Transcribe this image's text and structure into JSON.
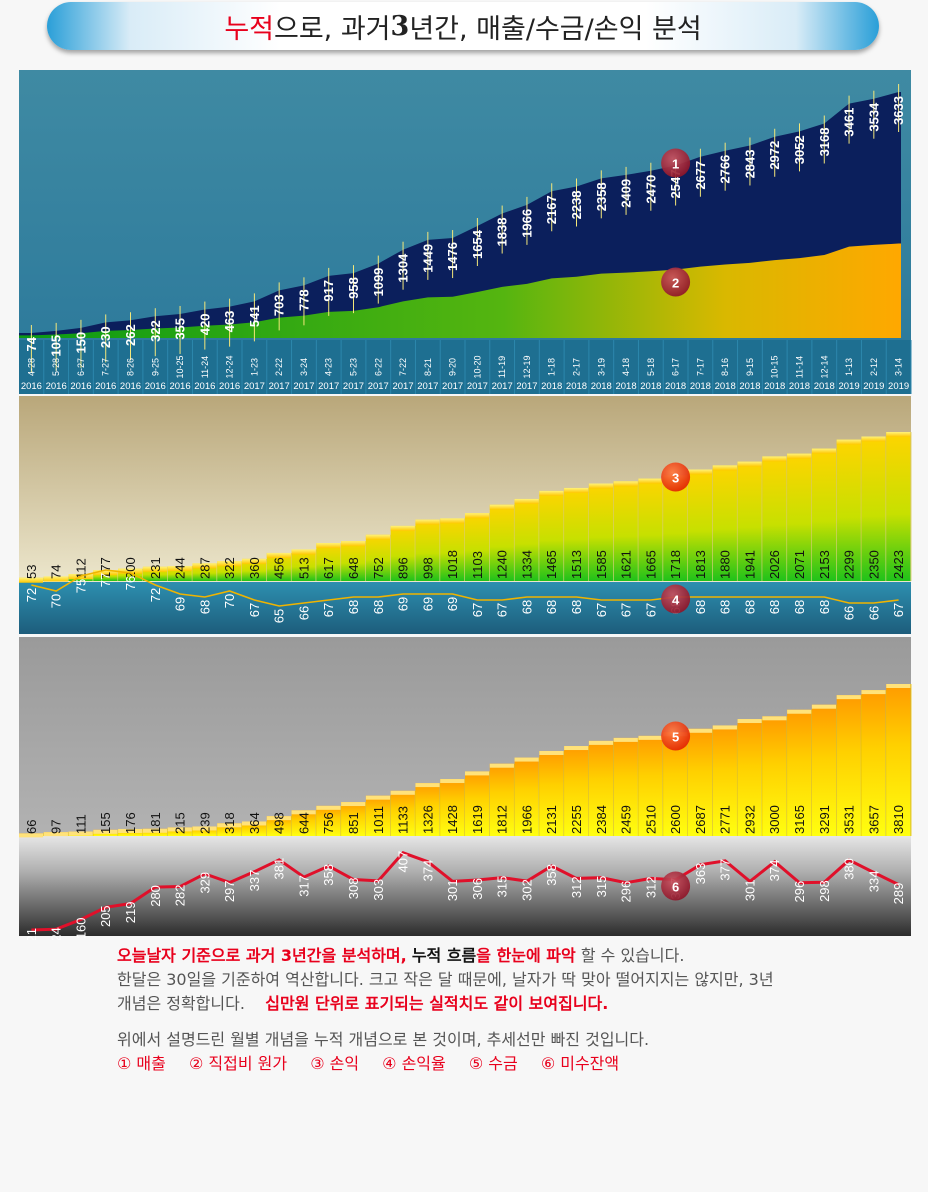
{
  "banner": {
    "part1": "누적",
    "part2": "으로,  과거 ",
    "part3": "3",
    "part4": "년간,    매출/수금/손익 분석"
  },
  "colors": {
    "sales_area": "#0b1f5c",
    "cost_area_top": "#ffb000",
    "cost_area_bottom": "#0a9a14",
    "panel1_bg": "#2e7fa0",
    "marker": "#a82033",
    "marker_light": "#ff3a00"
  },
  "chart_data": [
    {
      "type": "area",
      "categories": [
        "4-28",
        "5-28",
        "6-27",
        "7-27",
        "8-26",
        "9-25",
        "10-25",
        "11-24",
        "12-24",
        "1-23",
        "2-22",
        "3-24",
        "4-23",
        "5-23",
        "6-22",
        "7-22",
        "8-21",
        "9-20",
        "10-20",
        "11-19",
        "12-19",
        "1-18",
        "2-17",
        "3-19",
        "4-18",
        "5-18",
        "6-17",
        "7-17",
        "8-16",
        "9-15",
        "10-15",
        "11-14",
        "12-14",
        "1-13",
        "2-12",
        "3-14"
      ],
      "years": [
        "2016",
        "2016",
        "2016",
        "2016",
        "2016",
        "2016",
        "2016",
        "2016",
        "2016",
        "2017",
        "2017",
        "2017",
        "2017",
        "2017",
        "2017",
        "2017",
        "2017",
        "2017",
        "2017",
        "2017",
        "2017",
        "2018",
        "2018",
        "2018",
        "2018",
        "2018",
        "2018",
        "2018",
        "2018",
        "2018",
        "2018",
        "2018",
        "2018",
        "2019",
        "2019",
        "2019"
      ],
      "series": [
        {
          "values": [
            74,
            105,
            150,
            230,
            262,
            322,
            355,
            420,
            463,
            541,
            703,
            778,
            917,
            958,
            1099,
            1304,
            1449,
            1476,
            1654,
            1838,
            1966,
            2167,
            2238,
            2358,
            2409,
            2470,
            2547,
            2677,
            2766,
            2843,
            2972,
            3052,
            3168,
            3461,
            3534,
            3633
          ]
        },
        {
          "values": [
            38,
            52,
            70,
            105,
            118,
            140,
            155,
            180,
            200,
            232,
            300,
            330,
            385,
            400,
            455,
            540,
            600,
            610,
            680,
            755,
            800,
            880,
            905,
            950,
            965,
            985,
            1010,
            1055,
            1085,
            1110,
            1150,
            1180,
            1225,
            1350,
            1375,
            1395
          ]
        }
      ],
      "markers": [
        "1",
        "2"
      ]
    },
    {
      "type": "bar",
      "categories": [
        "4-28",
        "5-28",
        "6-27",
        "7-27",
        "8-26",
        "9-25",
        "10-25",
        "11-24",
        "12-24",
        "1-23",
        "2-22",
        "3-24",
        "4-23",
        "5-23",
        "6-22",
        "7-22",
        "8-21",
        "9-20",
        "10-20",
        "11-19",
        "12-19",
        "1-18",
        "2-17",
        "3-19",
        "4-18",
        "5-18",
        "6-17",
        "7-17",
        "8-16",
        "9-15",
        "10-15",
        "11-14",
        "12-14",
        "1-13",
        "2-12",
        "3-14"
      ],
      "series": [
        {
          "values": [
            53,
            74,
            112,
            177,
            200,
            231,
            244,
            287,
            322,
            360,
            456,
            513,
            617,
            648,
            752,
            896,
            998,
            1018,
            1103,
            1240,
            1334,
            1465,
            1513,
            1585,
            1621,
            1665,
            1718,
            1813,
            1880,
            1941,
            2026,
            2071,
            2153,
            2299,
            2350,
            2423
          ]
        },
        {
          "type": "line",
          "values": [
            72,
            70,
            75,
            77,
            76,
            72,
            69,
            68,
            70,
            67,
            65,
            66,
            67,
            68,
            68,
            69,
            69,
            69,
            67,
            67,
            68,
            68,
            68,
            67,
            67,
            67,
            68,
            68,
            68,
            68,
            68,
            68,
            68,
            66,
            66,
            67
          ]
        }
      ],
      "markers": [
        "3",
        "4"
      ]
    },
    {
      "type": "bar",
      "categories": [
        "4-28",
        "5-28",
        "6-27",
        "7-27",
        "8-26",
        "9-25",
        "10-25",
        "11-24",
        "12-24",
        "1-23",
        "2-22",
        "3-24",
        "4-23",
        "5-23",
        "6-22",
        "7-22",
        "8-21",
        "9-20",
        "10-20",
        "11-19",
        "12-19",
        "1-18",
        "2-17",
        "3-19",
        "4-18",
        "5-18",
        "6-17",
        "7-17",
        "8-16",
        "9-15",
        "10-15",
        "11-14",
        "12-14",
        "1-13",
        "2-12",
        "3-14"
      ],
      "series": [
        {
          "values": [
            66,
            97,
            111,
            155,
            176,
            181,
            215,
            239,
            318,
            364,
            498,
            644,
            756,
            851,
            1011,
            1133,
            1326,
            1428,
            1619,
            1812,
            1966,
            2131,
            2255,
            2384,
            2459,
            2510,
            2600,
            2687,
            2771,
            2932,
            3000,
            3165,
            3291,
            3531,
            3657,
            3810
          ]
        },
        {
          "type": "line",
          "values": [
            121,
            124,
            160,
            205,
            219,
            280,
            282,
            329,
            297,
            337,
            381,
            317,
            358,
            308,
            303,
            407,
            374,
            301,
            306,
            315,
            302,
            358,
            312,
            315,
            296,
            312,
            307,
            363,
            377,
            301,
            374,
            296,
            298,
            380,
            334,
            289
          ]
        }
      ],
      "markers": [
        "5",
        "6"
      ]
    }
  ],
  "notes": {
    "line1_red": "오늘날자 기준으로 과거 3년간을 분석하며,",
    "line1_black": "누적 흐름",
    "line1_red2": "을 한눈에 파악",
    "line1_tail": " 할 수 있습니다.",
    "line2": "한달은 30일을 기준하여 역산합니다.  크고 작은 달 때문에,  날자가 딱 맞아 떨어지지는 않지만,  3년",
    "line3": "개념은  정확합니다.",
    "line3_red": "십만원 단위로 표기되는 실적치도 같이  보여집니다.",
    "line4": "위에서 설명드린  월별 개념을  누적 개념으로 본 것이며,   추세선만  빠진 것입니다.",
    "legend": [
      "① 매출",
      "② 직접비 원가",
      "③ 손익",
      "④ 손익율",
      "⑤ 수금",
      "⑥ 미수잔액"
    ]
  }
}
